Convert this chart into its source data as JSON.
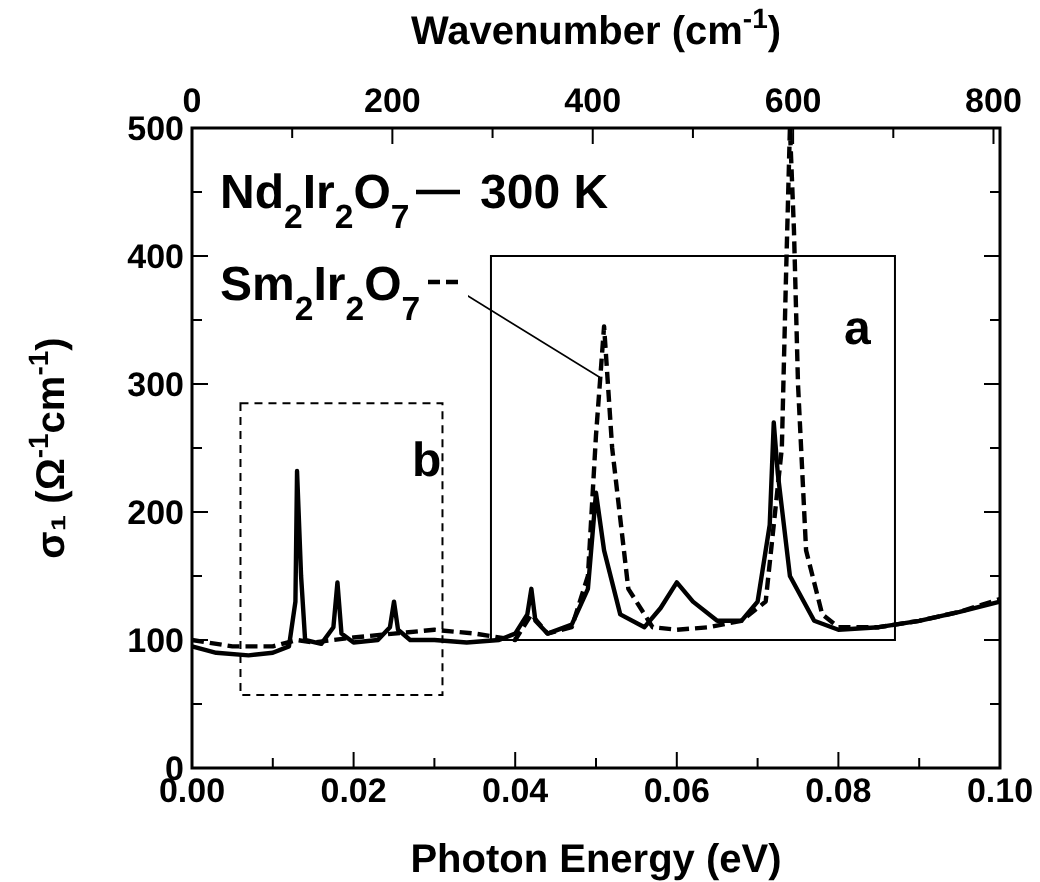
{
  "chart_data": {
    "type": "line",
    "xlabel": "Photon Energy (eV)",
    "ylabel": "σ₁ (Ω$^{-1}$cm$^{-1}$)",
    "x2label": "Wavenumber (cm$^{-1}$)",
    "xlim": [
      0,
      0.1
    ],
    "xticks": [
      {
        "value": 0,
        "label": "0.00"
      },
      {
        "value": 0.01,
        "label": null
      },
      {
        "value": 0.02,
        "label": "0.02"
      },
      {
        "value": 0.03,
        "label": null
      },
      {
        "value": 0.04,
        "label": "0.04"
      },
      {
        "value": 0.05,
        "label": null
      },
      {
        "value": 0.06,
        "label": "0.06"
      },
      {
        "value": 0.07,
        "label": null
      },
      {
        "value": 0.08,
        "label": "0.08"
      },
      {
        "value": 0.09,
        "label": null
      },
      {
        "value": 0.1,
        "label": "0.10"
      }
    ],
    "x2lim": [
      0,
      806.5
    ],
    "x2ticks": [
      0,
      {
        "value": 100,
        "label": null
      },
      200,
      {
        "value": 300,
        "label": null
      },
      400,
      {
        "value": 500,
        "label": null
      },
      600,
      {
        "value": 700,
        "label": null
      },
      800
    ],
    "ylim": [
      0,
      500
    ],
    "yticks": [
      0,
      {
        "value": 50,
        "label": null
      },
      100,
      {
        "value": 150,
        "label": null
      },
      200,
      {
        "value": 250,
        "label": null
      },
      300,
      {
        "value": 350,
        "label": null
      },
      400,
      {
        "value": 450,
        "label": null
      },
      500
    ],
    "grid": false,
    "legend": "top left",
    "series": [
      {
        "name": "Nd$_{2}$Ir$_{2}$O$_{7}$",
        "color": "#000000",
        "line_style": "solid",
        "x": [
          0,
          0.003,
          0.007,
          0.01,
          0.012,
          0.0128,
          0.013,
          0.0135,
          0.014,
          0.016,
          0.0175,
          0.018,
          0.0185,
          0.02,
          0.023,
          0.0245,
          0.025,
          0.0255,
          0.027,
          0.03,
          0.034,
          0.038,
          0.04,
          0.0415,
          0.042,
          0.0425,
          0.044,
          0.047,
          0.049,
          0.05,
          0.051,
          0.053,
          0.056,
          0.058,
          0.06,
          0.062,
          0.065,
          0.068,
          0.07,
          0.0715,
          0.072,
          0.0725,
          0.074,
          0.077,
          0.08,
          0.085,
          0.09,
          0.095,
          0.1
        ],
        "values": [
          95,
          90,
          88,
          90,
          95,
          130,
          232,
          150,
          100,
          97,
          110,
          145,
          105,
          98,
          100,
          110,
          130,
          108,
          100,
          100,
          98,
          100,
          105,
          120,
          140,
          115,
          105,
          112,
          140,
          215,
          170,
          120,
          110,
          125,
          145,
          130,
          115,
          115,
          130,
          190,
          270,
          230,
          150,
          115,
          108,
          110,
          115,
          122,
          130
        ]
      },
      {
        "name": "Sm$_{2}$Ir$_{2}$O$_{7}$",
        "color": "#000000",
        "line_style": "dashed",
        "x": [
          0,
          0.005,
          0.01,
          0.013,
          0.015,
          0.02,
          0.025,
          0.03,
          0.035,
          0.04,
          0.042,
          0.044,
          0.047,
          0.049,
          0.05,
          0.051,
          0.052,
          0.054,
          0.057,
          0.06,
          0.064,
          0.068,
          0.071,
          0.073,
          0.0735,
          0.074,
          0.0745,
          0.075,
          0.076,
          0.078,
          0.08,
          0.085,
          0.09,
          0.095,
          0.1
        ],
        "values": [
          100,
          95,
          95,
          100,
          98,
          102,
          105,
          108,
          105,
          100,
          120,
          105,
          110,
          150,
          260,
          345,
          250,
          140,
          110,
          108,
          110,
          115,
          130,
          250,
          380,
          500,
          420,
          300,
          170,
          120,
          110,
          110,
          115,
          122,
          132
        ]
      }
    ],
    "annotations": [
      "300 K",
      "a",
      "b"
    ]
  }
}
